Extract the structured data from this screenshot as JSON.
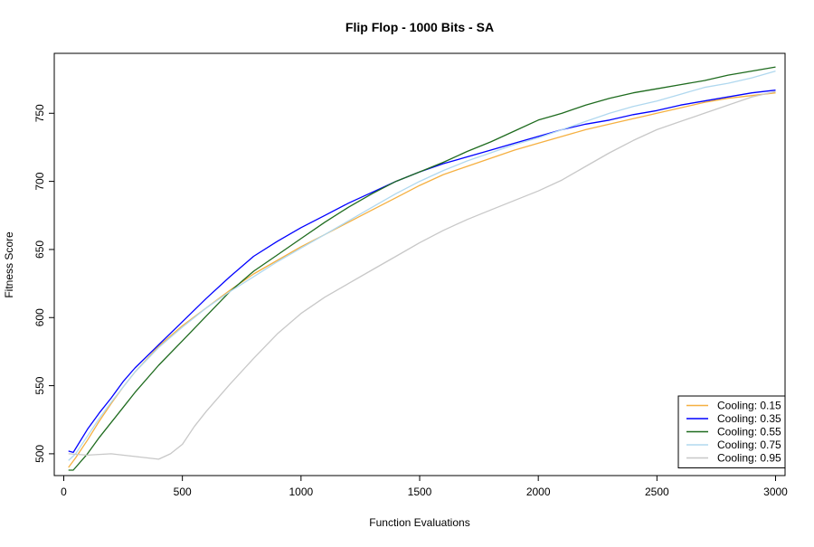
{
  "chart_data": {
    "type": "line",
    "title": "Flip Flop - 1000 Bits - SA",
    "xlabel": "Function Evaluations",
    "ylabel": "Fitness Score",
    "xlim": [
      -40,
      3040
    ],
    "ylim": [
      484,
      794
    ],
    "xticks": [
      0,
      500,
      1000,
      1500,
      2000,
      2500,
      3000
    ],
    "yticks": [
      500,
      550,
      600,
      650,
      700,
      750
    ],
    "grid": false,
    "legend_position": "bottom-right",
    "series": [
      {
        "name": "Cooling: 0.15",
        "color": "#f5b041",
        "x": [
          20,
          50,
          100,
          150,
          200,
          250,
          300,
          400,
          500,
          600,
          700,
          800,
          900,
          1000,
          1100,
          1200,
          1300,
          1400,
          1500,
          1600,
          1700,
          1800,
          1900,
          2000,
          2100,
          2200,
          2300,
          2400,
          2500,
          2600,
          2700,
          2800,
          2900,
          3000
        ],
        "values": [
          490,
          497,
          510,
          524,
          537,
          549,
          560,
          579,
          594,
          607,
          620,
          632,
          642,
          652,
          661,
          670,
          679,
          688,
          697,
          705,
          711,
          717,
          723,
          728,
          733,
          738,
          742,
          746,
          750,
          754,
          758,
          761,
          763,
          765
        ]
      },
      {
        "name": "Cooling: 0.35",
        "color": "#0000ff",
        "x": [
          20,
          40,
          100,
          150,
          200,
          250,
          300,
          400,
          500,
          600,
          700,
          800,
          900,
          1000,
          1100,
          1200,
          1300,
          1400,
          1500,
          1600,
          1700,
          1800,
          1900,
          2000,
          2100,
          2200,
          2300,
          2400,
          2500,
          2600,
          2700,
          2800,
          2900,
          3000
        ],
        "values": [
          502,
          501,
          518,
          530,
          541,
          553,
          563,
          580,
          597,
          614,
          630,
          645,
          656,
          666,
          675,
          684,
          692,
          700,
          707,
          713,
          718,
          723,
          728,
          733,
          738,
          742,
          745,
          749,
          752,
          756,
          759,
          762,
          765,
          767
        ]
      },
      {
        "name": "Cooling: 0.55",
        "color": "#1e6b1e",
        "x": [
          20,
          40,
          100,
          150,
          200,
          250,
          300,
          400,
          500,
          600,
          700,
          800,
          900,
          1000,
          1100,
          1200,
          1300,
          1400,
          1500,
          1600,
          1700,
          1800,
          1900,
          2000,
          2100,
          2200,
          2300,
          2400,
          2500,
          2600,
          2700,
          2800,
          2900,
          3000
        ],
        "values": [
          488,
          488,
          500,
          512,
          523,
          534,
          545,
          565,
          583,
          601,
          619,
          634,
          646,
          658,
          670,
          681,
          691,
          700,
          707,
          714,
          722,
          729,
          737,
          745,
          750,
          756,
          761,
          765,
          768,
          771,
          774,
          778,
          781,
          784
        ]
      },
      {
        "name": "Cooling: 0.75",
        "color": "#b0d8ef",
        "x": [
          20,
          50,
          100,
          150,
          200,
          250,
          300,
          400,
          500,
          600,
          700,
          800,
          900,
          1000,
          1100,
          1200,
          1300,
          1400,
          1500,
          1600,
          1700,
          1800,
          1900,
          2000,
          2100,
          2200,
          2300,
          2400,
          2500,
          2600,
          2700,
          2800,
          2900,
          3000
        ],
        "values": [
          495,
          500,
          513,
          526,
          538,
          549,
          560,
          578,
          593,
          607,
          619,
          630,
          641,
          651,
          661,
          671,
          681,
          691,
          700,
          708,
          715,
          721,
          727,
          732,
          738,
          744,
          750,
          755,
          759,
          764,
          769,
          772,
          776,
          781
        ]
      },
      {
        "name": "Cooling: 0.95",
        "color": "#c8c8c8",
        "x": [
          20,
          100,
          200,
          300,
          350,
          400,
          450,
          500,
          550,
          600,
          700,
          800,
          900,
          1000,
          1100,
          1200,
          1300,
          1400,
          1500,
          1600,
          1700,
          1800,
          1900,
          2000,
          2100,
          2200,
          2300,
          2400,
          2500,
          2600,
          2700,
          2800,
          2900,
          3000
        ],
        "values": [
          500,
          499,
          500,
          498,
          497,
          496,
          500,
          507,
          520,
          531,
          551,
          570,
          588,
          603,
          615,
          625,
          635,
          645,
          655,
          664,
          672,
          679,
          686,
          693,
          701,
          711,
          721,
          730,
          738,
          744,
          750,
          756,
          762,
          766
        ]
      }
    ]
  }
}
